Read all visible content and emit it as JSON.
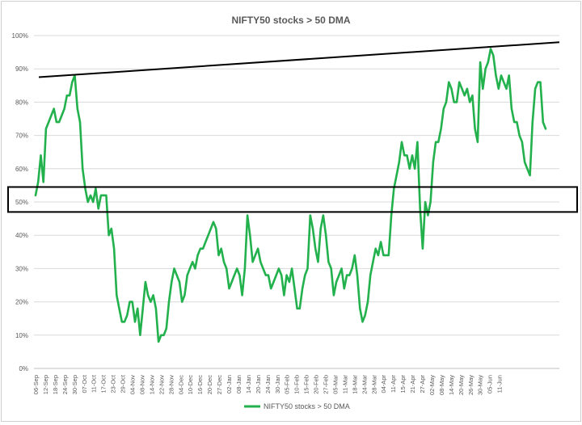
{
  "chart_data": {
    "type": "line",
    "title": "NIFTY50 stocks > 50 DMA",
    "xlabel": "",
    "ylabel": "",
    "ylim": [
      0,
      100
    ],
    "y_ticks": [
      "0%",
      "10%",
      "20%",
      "30%",
      "40%",
      "50%",
      "60%",
      "70%",
      "80%",
      "90%",
      "100%"
    ],
    "x_ticks": [
      "06-Sep",
      "12-Sep",
      "18-Sep",
      "24-Sep",
      "30-Sep",
      "07-Oct",
      "11-Oct",
      "17-Oct",
      "23-Oct",
      "29-Oct",
      "04-Nov",
      "08-Nov",
      "14-Nov",
      "22-Nov",
      "28-Nov",
      "04-Dec",
      "10-Dec",
      "16-Dec",
      "20-Dec",
      "27-Dec",
      "02-Jan",
      "08-Jan",
      "14-Jan",
      "20-Jan",
      "24-Jan",
      "30-Jan",
      "05-Feb",
      "10-Feb",
      "15-Feb",
      "20-Feb",
      "27-Feb",
      "05-Mar",
      "11-Mar",
      "18-Mar",
      "24-Mar",
      "28-Mar",
      "04-Apr",
      "11-Apr",
      "15-Apr",
      "21-Apr",
      "27-Apr",
      "02-May",
      "08-May",
      "14-May",
      "20-May",
      "26-May",
      "30-May",
      "05-Jun",
      "11-Jun"
    ],
    "grid": true,
    "legend_position": "bottom",
    "series": [
      {
        "name": "NIFTY50 stocks > 50 DMA",
        "color": "#22b14c",
        "values": [
          52,
          56,
          64,
          56,
          72,
          74,
          76,
          78,
          74,
          74,
          76,
          78,
          82,
          82,
          86,
          88,
          78,
          74,
          60,
          54,
          50,
          52,
          50,
          54,
          48,
          52,
          52,
          52,
          40,
          42,
          36,
          22,
          18,
          14,
          14,
          16,
          20,
          20,
          14,
          18,
          10,
          18,
          26,
          22,
          20,
          22,
          18,
          8,
          10,
          10,
          12,
          20,
          26,
          30,
          28,
          26,
          20,
          22,
          28,
          30,
          32,
          30,
          34,
          36,
          36,
          38,
          40,
          42,
          44,
          42,
          34,
          36,
          32,
          30,
          24,
          26,
          28,
          30,
          28,
          22,
          30,
          46,
          40,
          32,
          34,
          36,
          32,
          30,
          28,
          28,
          24,
          26,
          28,
          30,
          28,
          22,
          28,
          26,
          30,
          24,
          18,
          18,
          24,
          28,
          30,
          46,
          42,
          36,
          32,
          42,
          46,
          40,
          32,
          30,
          22,
          26,
          28,
          30,
          24,
          28,
          28,
          30,
          34,
          28,
          18,
          14,
          16,
          20,
          28,
          32,
          36,
          34,
          38,
          34,
          34,
          34,
          46,
          54,
          58,
          62,
          68,
          64,
          64,
          60,
          64,
          60,
          68,
          48,
          36,
          50,
          46,
          50,
          62,
          68,
          68,
          72,
          78,
          80,
          86,
          84,
          80,
          80,
          86,
          84,
          82,
          84,
          80,
          82,
          72,
          68,
          92,
          84,
          90,
          92,
          96,
          94,
          88,
          84,
          88,
          86,
          84,
          88,
          78,
          74,
          74,
          70,
          68,
          62,
          60,
          58,
          74,
          84,
          86,
          86,
          74,
          72
        ]
      }
    ],
    "annotations": [
      {
        "type": "trendline",
        "color": "#000000",
        "from": [
          0,
          87.5
        ],
        "to": [
          1,
          98
        ]
      },
      {
        "type": "band",
        "color": "#000000",
        "ymin": 47,
        "ymax": 54.5
      }
    ]
  }
}
